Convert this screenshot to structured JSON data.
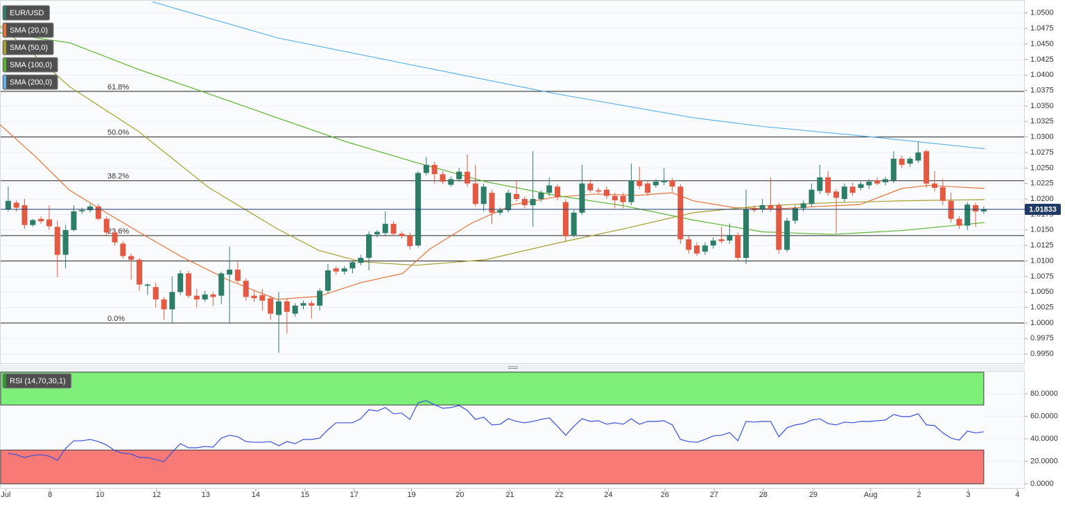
{
  "chart_data": {
    "type": "candlestick",
    "symbol": "EUR/USD",
    "up_color": "#2e7d68",
    "down_color": "#e25a44",
    "xlim": [
      -1,
      124
    ],
    "xticks": [
      {
        "value": -0.3,
        "label": "Jul"
      },
      {
        "value": 5.1,
        "label": "8"
      },
      {
        "value": 11.2,
        "label": "10"
      },
      {
        "value": 18.1,
        "label": "12"
      },
      {
        "value": 24.1,
        "label": "13"
      },
      {
        "value": 30.2,
        "label": "14"
      },
      {
        "value": 36.2,
        "label": "15"
      },
      {
        "value": 42.2,
        "label": "17"
      },
      {
        "value": 49.2,
        "label": "19"
      },
      {
        "value": 55.1,
        "label": "20"
      },
      {
        "value": 61.2,
        "label": "21"
      },
      {
        "value": 67.2,
        "label": "22"
      },
      {
        "value": 73.2,
        "label": "24"
      },
      {
        "value": 80.1,
        "label": "26"
      },
      {
        "value": 86.1,
        "label": "27"
      },
      {
        "value": 92.1,
        "label": "28"
      },
      {
        "value": 98.2,
        "label": "29"
      },
      {
        "value": 105.2,
        "label": "Aug"
      },
      {
        "value": 111.1,
        "label": "2"
      },
      {
        "value": 117.1,
        "label": "3"
      },
      {
        "value": 123.1,
        "label": "4"
      }
    ],
    "ylim": [
      0.9934,
      1.0521
    ],
    "yticks": [
      {
        "value": 0.995,
        "label": "0.9950"
      },
      {
        "value": 0.9975,
        "label": "0.9975"
      },
      {
        "value": 1,
        "label": "1.0000"
      },
      {
        "value": 1.0025,
        "label": "1.0025"
      },
      {
        "value": 1.005,
        "label": "1.0050"
      },
      {
        "value": 1.0075,
        "label": "1.0075"
      },
      {
        "value": 1.01,
        "label": "1.0100"
      },
      {
        "value": 1.0125,
        "label": "1.0125"
      },
      {
        "value": 1.015,
        "label": "1.0150"
      },
      {
        "value": 1.0175,
        "label": "1.0175"
      },
      {
        "value": 1.02,
        "label": "1.0200"
      },
      {
        "value": 1.0225,
        "label": "1.0225"
      },
      {
        "value": 1.025,
        "label": "1.0250"
      },
      {
        "value": 1.0275,
        "label": "1.0275"
      },
      {
        "value": 1.03,
        "label": "1.0300"
      },
      {
        "value": 1.0325,
        "label": "1.0325"
      },
      {
        "value": 1.035,
        "label": "1.0350"
      },
      {
        "value": 1.0375,
        "label": "1.0375"
      },
      {
        "value": 1.04,
        "label": "1.0400"
      },
      {
        "value": 1.0425,
        "label": "1.0425"
      },
      {
        "value": 1.045,
        "label": "1.0450"
      },
      {
        "value": 1.0475,
        "label": "1.0475"
      },
      {
        "value": 1.05,
        "label": "1.0500"
      }
    ],
    "grid": true,
    "last_price": 1.01833,
    "fib_levels": [
      {
        "label": "61.8%",
        "value": 1.03735
      },
      {
        "label": "50.0%",
        "value": 1.03
      },
      {
        "label": "38.2%",
        "value": 1.02295
      },
      {
        "label": "23.6%",
        "value": 1.0141
      },
      {
        "label": "0.0%",
        "value": 1.0
      }
    ],
    "horizontal_lines": [
      1.01
    ],
    "ohlc": [
      [
        1.0183,
        1.022,
        1.018,
        1.0197
      ],
      [
        1.0194,
        1.0198,
        1.018,
        1.0186
      ],
      [
        1.019,
        1.02,
        1.0152,
        1.0158
      ],
      [
        1.0158,
        1.0168,
        1.0155,
        1.0166
      ],
      [
        1.0168,
        1.0172,
        1.016,
        1.0164
      ],
      [
        1.0167,
        1.019,
        1.015,
        1.0156
      ],
      [
        1.0155,
        1.0165,
        1.0074,
        1.011
      ],
      [
        1.011,
        1.0158,
        1.0088,
        1.015
      ],
      [
        1.015,
        1.019,
        1.0148,
        1.018
      ],
      [
        1.018,
        1.0186,
        1.0176,
        1.0182
      ],
      [
        1.0182,
        1.0192,
        1.0178,
        1.0188
      ],
      [
        1.0188,
        1.0192,
        1.0165,
        1.0168
      ],
      [
        1.0168,
        1.0172,
        1.014,
        1.0146
      ],
      [
        1.0146,
        1.015,
        1.0125,
        1.013
      ],
      [
        1.0128,
        1.0132,
        1.0104,
        1.0108
      ],
      [
        1.0108,
        1.0112,
        1.007,
        1.0102
      ],
      [
        1.0102,
        1.0104,
        1.0052,
        1.0062
      ],
      [
        1.006,
        1.0064,
        1.0045,
        1.0062
      ],
      [
        1.0058,
        1.0065,
        1.0025,
        1.0038
      ],
      [
        1.0038,
        1.0042,
        1.0005,
        1.0022
      ],
      [
        1.0022,
        1.0075,
        1.0,
        1.005
      ],
      [
        1.005,
        1.0085,
        1.0045,
        1.008
      ],
      [
        1.008,
        1.0084,
        1.004,
        1.0044
      ],
      [
        1.0044,
        1.0055,
        1.0025,
        1.0038
      ],
      [
        1.0038,
        1.0052,
        1.0034,
        1.0046
      ],
      [
        1.0046,
        1.005,
        1.0028,
        1.0042
      ],
      [
        1.0044,
        1.0083,
        1.003,
        1.008
      ],
      [
        1.0078,
        1.0123,
        1.0,
        1.0086
      ],
      [
        1.0086,
        1.0098,
        1.0064,
        1.0068
      ],
      [
        1.0068,
        1.0072,
        1.0036,
        1.0042
      ],
      [
        1.0044,
        1.0052,
        1.0034,
        1.004
      ],
      [
        1.0045,
        1.0055,
        1.002,
        1.0036
      ],
      [
        1.004,
        1.0044,
        1.0005,
        1.0015
      ],
      [
        1.0013,
        1.005,
        0.9952,
        1.0035
      ],
      [
        1.0035,
        1.004,
        0.9983,
        1.0018
      ],
      [
        1.0015,
        1.0032,
        1.001,
        1.0028
      ],
      [
        1.0028,
        1.0036,
        1.0022,
        1.0032
      ],
      [
        1.0032,
        1.0036,
        1.0007,
        1.0028
      ],
      [
        1.0028,
        1.0056,
        1.002,
        1.0052
      ],
      [
        1.0052,
        1.0095,
        1.0048,
        1.0085
      ],
      [
        1.0088,
        1.0092,
        1.0078,
        1.0083
      ],
      [
        1.0083,
        1.0092,
        1.0078,
        1.0088
      ],
      [
        1.0088,
        1.01,
        1.008,
        1.0098
      ],
      [
        1.0097,
        1.011,
        1.0093,
        1.0105
      ],
      [
        1.0105,
        1.0148,
        1.0085,
        1.0143
      ],
      [
        1.0143,
        1.015,
        1.0138,
        1.0147
      ],
      [
        1.0145,
        1.018,
        1.014,
        1.016
      ],
      [
        1.016,
        1.0164,
        1.014,
        1.0144
      ],
      [
        1.0144,
        1.0148,
        1.0136,
        1.014
      ],
      [
        1.0141,
        1.0146,
        1.0118,
        1.0124
      ],
      [
        1.0125,
        1.0245,
        1.0122,
        1.0242
      ],
      [
        1.0242,
        1.0268,
        1.0238,
        1.0255
      ],
      [
        1.0255,
        1.026,
        1.0225,
        1.024
      ],
      [
        1.024,
        1.0245,
        1.0224,
        1.0228
      ],
      [
        1.0223,
        1.0236,
        1.022,
        1.0232
      ],
      [
        1.0232,
        1.025,
        1.0228,
        1.0244
      ],
      [
        1.0244,
        1.0272,
        1.022,
        1.0225
      ],
      [
        1.0225,
        1.0255,
        1.0188,
        1.0192
      ],
      [
        1.0192,
        1.0225,
        1.018,
        1.022
      ],
      [
        1.021,
        1.0215,
        1.016,
        1.0178
      ],
      [
        1.0178,
        1.0186,
        1.0174,
        1.0182
      ],
      [
        1.0182,
        1.0215,
        1.0178,
        1.021
      ],
      [
        1.0208,
        1.023,
        1.0196,
        1.02
      ],
      [
        1.02,
        1.0204,
        1.0185,
        1.019
      ],
      [
        1.019,
        1.0277,
        1.0155,
        1.02
      ],
      [
        1.02,
        1.0214,
        1.0195,
        1.021
      ],
      [
        1.021,
        1.0235,
        1.0205,
        1.0222
      ],
      [
        1.022,
        1.0224,
        1.0198,
        1.0203
      ],
      [
        1.0195,
        1.02,
        1.0132,
        1.014
      ],
      [
        1.0142,
        1.0182,
        1.0138,
        1.0178
      ],
      [
        1.0178,
        1.0255,
        1.0174,
        1.0225
      ],
      [
        1.0225,
        1.0232,
        1.021,
        1.0214
      ],
      [
        1.0214,
        1.0218,
        1.0208,
        1.0212
      ],
      [
        1.0215,
        1.022,
        1.02,
        1.0205
      ],
      [
        1.0205,
        1.021,
        1.0185,
        1.0198
      ],
      [
        1.0205,
        1.021,
        1.0185,
        1.0195
      ],
      [
        1.0195,
        1.0257,
        1.019,
        1.023
      ],
      [
        1.023,
        1.0252,
        1.0216,
        1.0221
      ],
      [
        1.0225,
        1.023,
        1.0205,
        1.021
      ],
      [
        1.0222,
        1.0232,
        1.0218,
        1.0228
      ],
      [
        1.0227,
        1.025,
        1.0222,
        1.023
      ],
      [
        1.023,
        1.0234,
        1.0212,
        1.022
      ],
      [
        1.022,
        1.0224,
        1.0128,
        1.0135
      ],
      [
        1.0135,
        1.014,
        1.0112,
        1.0118
      ],
      [
        1.0125,
        1.013,
        1.0108,
        1.0112
      ],
      [
        1.0115,
        1.013,
        1.011,
        1.0125
      ],
      [
        1.0125,
        1.0138,
        1.012,
        1.0133
      ],
      [
        1.0135,
        1.0155,
        1.0128,
        1.0132
      ],
      [
        1.0133,
        1.016,
        1.0128,
        1.0142
      ],
      [
        1.0142,
        1.0146,
        1.01,
        1.0105
      ],
      [
        1.0105,
        1.0215,
        1.0095,
        1.0183
      ],
      [
        1.0185,
        1.019,
        1.0178,
        1.0182
      ],
      [
        1.0183,
        1.02,
        1.0178,
        1.019
      ],
      [
        1.019,
        1.0235,
        1.018,
        1.0185
      ],
      [
        1.019,
        1.0194,
        1.0112,
        1.0118
      ],
      [
        1.0118,
        1.017,
        1.0114,
        1.0165
      ],
      [
        1.0165,
        1.019,
        1.016,
        1.0185
      ],
      [
        1.0185,
        1.0198,
        1.018,
        1.0193
      ],
      [
        1.0192,
        1.0225,
        1.0188,
        1.0215
      ],
      [
        1.0213,
        1.0255,
        1.0208,
        1.0235
      ],
      [
        1.0235,
        1.0245,
        1.0205,
        1.021
      ],
      [
        1.0212,
        1.0216,
        1.0145,
        1.0202
      ],
      [
        1.02,
        1.0225,
        1.0195,
        1.022
      ],
      [
        1.022,
        1.0226,
        1.0205,
        1.021
      ],
      [
        1.0218,
        1.0228,
        1.0214,
        1.0224
      ],
      [
        1.0222,
        1.0232,
        1.0216,
        1.0228
      ],
      [
        1.023,
        1.0235,
        1.0222,
        1.0225
      ],
      [
        1.0227,
        1.0236,
        1.0222,
        1.0232
      ],
      [
        1.023,
        1.0277,
        1.0226,
        1.0265
      ],
      [
        1.0265,
        1.027,
        1.025,
        1.0255
      ],
      [
        1.0257,
        1.0268,
        1.0252,
        1.0265
      ],
      [
        1.0262,
        1.0293,
        1.0258,
        1.0275
      ],
      [
        1.0277,
        1.028,
        1.0218,
        1.0225
      ],
      [
        1.0225,
        1.0245,
        1.0212,
        1.0218
      ],
      [
        1.0219,
        1.0232,
        1.019,
        1.0197
      ],
      [
        1.0197,
        1.021,
        1.0162,
        1.0168
      ],
      [
        1.0168,
        1.0172,
        1.0152,
        1.0157
      ],
      [
        1.0157,
        1.0195,
        1.015,
        1.0191
      ],
      [
        1.019,
        1.0194,
        1.0155,
        1.018
      ],
      [
        1.018,
        1.0188,
        1.0176,
        1.0183
      ]
    ],
    "sma": [
      {
        "name": "SMA (20,0)",
        "color": "#e8733a",
        "x": [
          -1,
          3.2,
          7.5,
          11.7,
          15.9,
          21.0,
          26.9,
          32.8,
          37.9,
          43.0,
          48.1,
          51.4,
          56.5,
          61.6,
          66.7,
          71.7,
          76.8,
          81.0,
          83.6,
          88.6,
          93.7,
          98.8,
          103.9,
          109.0,
          112.3,
          119.1
        ],
        "values": [
          1.032,
          1.027,
          1.0214,
          1.018,
          1.0147,
          1.0108,
          1.0069,
          1.0038,
          1.0043,
          1.0065,
          1.008,
          1.0119,
          1.0161,
          1.0191,
          1.0203,
          1.0208,
          1.0206,
          1.021,
          1.0197,
          1.0186,
          1.0184,
          1.0188,
          1.0191,
          1.0217,
          1.0222,
          1.0217
        ]
      },
      {
        "name": "SMA (50,0)",
        "color": "#a8a02e",
        "x": [
          -1,
          3.2,
          7.5,
          15.9,
          24.4,
          32.8,
          37.9,
          43.0,
          49.7,
          58.2,
          66.7,
          75.1,
          83.6,
          92.0,
          100.5,
          108.9,
          119.1
        ],
        "values": [
          1.0479,
          1.0432,
          1.0381,
          1.0309,
          1.0219,
          1.0152,
          1.0117,
          1.0099,
          1.0093,
          1.0102,
          1.0128,
          1.0152,
          1.0178,
          1.0189,
          1.0194,
          1.0197,
          1.0199
        ]
      },
      {
        "name": "SMA (100,0)",
        "color": "#5ab52e",
        "x": [
          -1,
          7.5,
          15.9,
          24.4,
          32.8,
          41.3,
          49.7,
          58.2,
          66.7,
          75.1,
          83.6,
          92.0,
          100.5,
          108.9,
          119.1
        ],
        "values": [
          1.0468,
          1.0452,
          1.0409,
          1.037,
          1.0331,
          1.0292,
          1.0259,
          1.0228,
          1.0206,
          1.0189,
          1.0166,
          1.0147,
          1.0143,
          1.0149,
          1.0162
        ]
      },
      {
        "name": "SMA (200,0)",
        "color": "#5fb3ec",
        "x": [
          17.6,
          32.8,
          49.7,
          66.7,
          83.6,
          92.0,
          104.7,
          119.1
        ],
        "values": [
          1.0518,
          1.046,
          1.0415,
          1.037,
          1.0331,
          1.0317,
          1.0301,
          1.0281
        ]
      }
    ],
    "rsi": {
      "name": "RSI (14,70,30,1)",
      "color": "#3850e0",
      "overbought": 70,
      "oversold": 30,
      "ylim": [
        -4.3,
        100.3
      ],
      "yticks": [
        {
          "value": 0,
          "label": "0.0000"
        },
        {
          "value": 20,
          "label": "20.0000"
        },
        {
          "value": 40,
          "label": "40.0000"
        },
        {
          "value": 60,
          "label": "60.0000"
        },
        {
          "value": 80,
          "label": "80.0000"
        }
      ],
      "values": [
        27.1,
        25.8,
        23.4,
        25.2,
        25.8,
        24.6,
        20.9,
        31.4,
        38.2,
        38.2,
        39.4,
        37.5,
        34.5,
        29.5,
        27.1,
        26.5,
        23.4,
        23.4,
        21.5,
        19.7,
        28,
        35.7,
        32,
        32,
        33.2,
        32.6,
        40.6,
        43.1,
        41.8,
        37.5,
        36.9,
        36.9,
        37.5,
        33.8,
        37.5,
        35.7,
        39.4,
        39.4,
        40.6,
        48,
        54.2,
        54.2,
        54.2,
        57.8,
        65.8,
        64.6,
        67.7,
        62.2,
        62.8,
        57.2,
        72,
        73.8,
        70.2,
        67.1,
        67.7,
        69.5,
        65.2,
        57.2,
        59.1,
        52.3,
        52.9,
        57.8,
        55.4,
        54.2,
        55.4,
        57.2,
        58.5,
        51.1,
        43.1,
        51.1,
        57.8,
        55.4,
        56,
        52.9,
        54.2,
        52.9,
        57.8,
        52.9,
        55.4,
        55.4,
        56,
        52.3,
        39.4,
        37.5,
        36.9,
        39.4,
        42.5,
        43.1,
        45.5,
        38.2,
        55.4,
        54.8,
        55.4,
        55.4,
        41.8,
        49.8,
        52.3,
        53.5,
        56.6,
        57.8,
        53.5,
        52.3,
        54.8,
        54.2,
        55.4,
        55.4,
        56,
        56.6,
        61.5,
        59.7,
        59.7,
        62.2,
        52.3,
        51.7,
        45.2,
        40.6,
        38.8,
        46.8,
        45.2,
        46.2
      ]
    }
  }
}
